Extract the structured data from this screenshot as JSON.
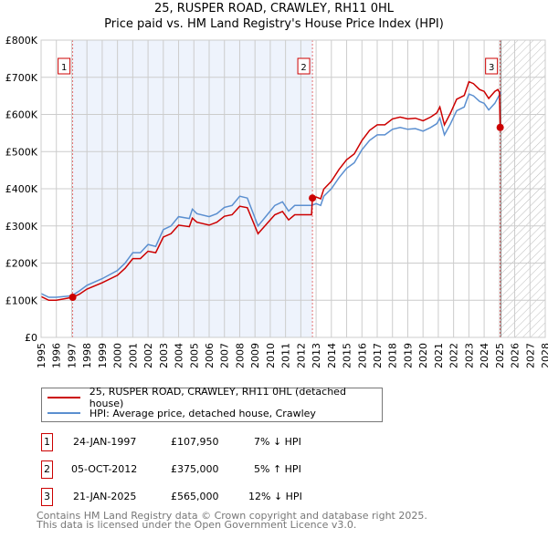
{
  "title": "25, RUSPER ROAD, CRAWLEY, RH11 0HL",
  "subtitle": "Price paid vs. HM Land Registry's House Price Index (HPI)",
  "chart_data": {
    "type": "line",
    "title": "25, RUSPER ROAD, CRAWLEY, RH11 0HL — Price paid vs. HM Land Registry's House Price Index (HPI)",
    "xlim": [
      1995,
      2028
    ],
    "ylim": [
      0,
      800000
    ],
    "yticks": [
      0,
      100000,
      200000,
      300000,
      400000,
      500000,
      600000,
      700000,
      800000
    ],
    "ytick_labels": [
      "£0",
      "£100K",
      "£200K",
      "£300K",
      "£400K",
      "£500K",
      "£600K",
      "£700K",
      "£800K"
    ],
    "xticks": [
      "1995",
      "1996",
      "1997",
      "1998",
      "1999",
      "2000",
      "2001",
      "2002",
      "2003",
      "2004",
      "2005",
      "2006",
      "2007",
      "2008",
      "2009",
      "2010",
      "2011",
      "2012",
      "2013",
      "2014",
      "2015",
      "2016",
      "2017",
      "2018",
      "2019",
      "2020",
      "2021",
      "2022",
      "2023",
      "2024",
      "2025",
      "2026",
      "2027",
      "2028"
    ],
    "grid": true,
    "colors": {
      "price": "#cc0000",
      "hpi": "#5b8fd0",
      "shade": "#eef3fc"
    },
    "series": [
      {
        "name": "25, RUSPER ROAD, CRAWLEY, RH11 0HL (detached house)",
        "x": [
          1995,
          1995.5,
          1996,
          1997.07,
          1997.5,
          1998,
          1999,
          2000,
          2000.5,
          2001,
          2001.5,
          2002,
          2002.5,
          2003,
          2003.5,
          2004,
          2004.7,
          2004.9,
          2005.2,
          2006,
          2006.5,
          2007,
          2007.5,
          2008,
          2008.5,
          2009.2,
          2009.8,
          2010.3,
          2010.8,
          2011.2,
          2011.6,
          2012.7,
          2012.76,
          2013,
          2013.3,
          2013.5,
          2014,
          2014.5,
          2015,
          2015.5,
          2016,
          2016.5,
          2017,
          2017.5,
          2018,
          2018.5,
          2019,
          2019.5,
          2020,
          2020.5,
          2020.9,
          2021.1,
          2021.4,
          2021.8,
          2022.2,
          2022.7,
          2023,
          2023.3,
          2023.7,
          2024,
          2024.3,
          2024.7,
          2024.9,
          2025.0,
          2025.05
        ],
        "y": [
          110,
          100,
          100,
          107.95,
          116,
          130,
          147,
          167,
          186,
          212,
          212,
          232,
          228,
          270,
          279,
          302,
          298,
          321,
          310,
          302,
          310,
          326,
          330,
          353,
          349,
          279,
          307,
          330,
          339,
          316,
          330,
          330,
          375,
          378,
          373,
          399,
          420,
          452,
          478,
          494,
          530,
          557,
          572,
          572,
          588,
          593,
          588,
          590,
          583,
          593,
          604,
          620,
          572,
          604,
          641,
          651,
          688,
          683,
          667,
          662,
          643,
          662,
          667,
          660,
          565
        ]
      },
      {
        "name": "HPI: Average price, detached house, Crawley",
        "x": [
          1995,
          1995.5,
          1996,
          1997,
          1997.5,
          1998,
          1999,
          2000,
          2000.5,
          2001,
          2001.5,
          2002,
          2002.5,
          2003,
          2003.5,
          2004,
          2004.7,
          2004.9,
          2005.2,
          2006,
          2006.5,
          2007,
          2007.5,
          2008,
          2008.5,
          2009.2,
          2009.8,
          2010.3,
          2010.8,
          2011.2,
          2011.6,
          2012.7,
          2013,
          2013.3,
          2013.5,
          2014,
          2014.5,
          2015,
          2015.5,
          2016,
          2016.5,
          2017,
          2017.5,
          2018,
          2018.5,
          2019,
          2019.5,
          2020,
          2020.5,
          2020.9,
          2021.1,
          2021.4,
          2021.8,
          2022.2,
          2022.7,
          2023,
          2023.3,
          2023.7,
          2024,
          2024.3,
          2024.7,
          2024.9,
          2025.1
        ],
        "y": [
          118,
          108,
          108,
          112,
          125,
          140,
          158,
          180,
          200,
          228,
          228,
          250,
          245,
          290,
          300,
          325,
          320,
          345,
          333,
          325,
          333,
          350,
          355,
          380,
          375,
          300,
          330,
          355,
          365,
          340,
          355,
          355,
          360,
          355,
          380,
          400,
          430,
          455,
          470,
          505,
          530,
          545,
          545,
          560,
          565,
          560,
          562,
          555,
          565,
          575,
          590,
          545,
          575,
          610,
          620,
          655,
          650,
          635,
          630,
          612,
          630,
          645,
          660
        ]
      }
    ],
    "y_unit": "thousand GBP",
    "sales": [
      {
        "label": "1",
        "x": 1997.07,
        "y": 107.95
      },
      {
        "label": "2",
        "x": 2012.76,
        "y": 375
      },
      {
        "label": "3",
        "x": 2025.05,
        "y": 565
      }
    ]
  },
  "legend": {
    "price_label": "25, RUSPER ROAD, CRAWLEY, RH11 0HL (detached house)",
    "hpi_label": "HPI: Average price, detached house, Crawley"
  },
  "transactions": [
    {
      "num": "1",
      "date": "24-JAN-1997",
      "price": "£107,950",
      "hpi": "7% ↓ HPI"
    },
    {
      "num": "2",
      "date": "05-OCT-2012",
      "price": "£375,000",
      "hpi": "5% ↑ HPI"
    },
    {
      "num": "3",
      "date": "21-JAN-2025",
      "price": "£565,000",
      "hpi": "12% ↓ HPI"
    }
  ],
  "footer": {
    "line1": "Contains HM Land Registry data © Crown copyright and database right 2025.",
    "line2": "This data is licensed under the Open Government Licence v3.0."
  }
}
